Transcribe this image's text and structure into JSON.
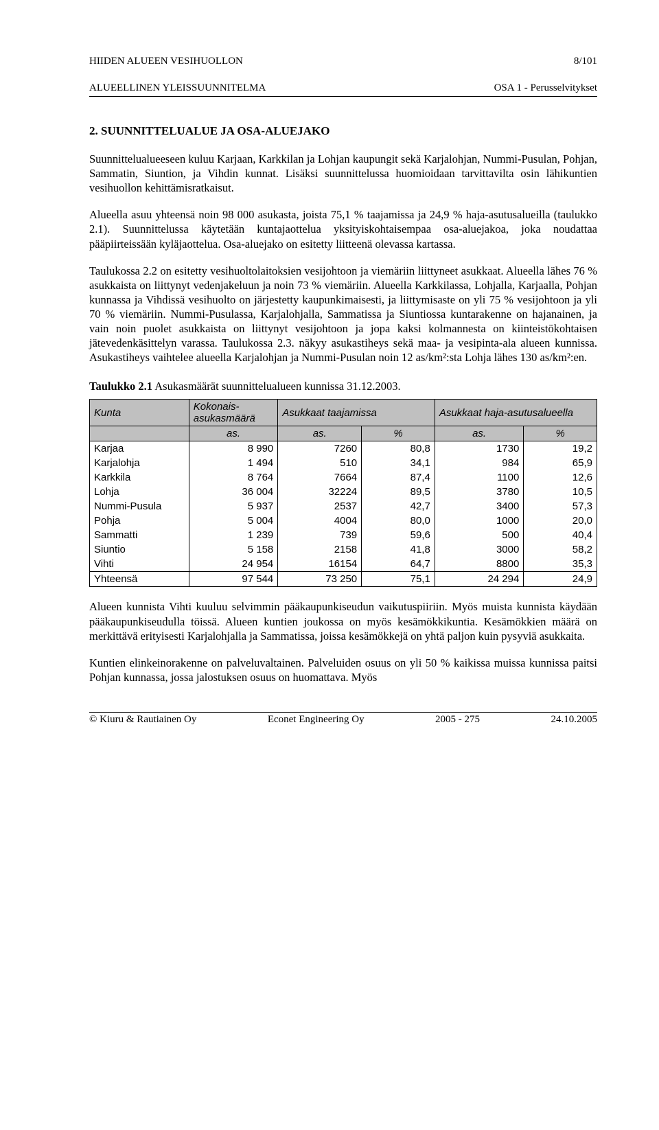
{
  "header": {
    "left_line1": "HIIDEN ALUEEN VESIHUOLLON",
    "left_line2": "ALUEELLINEN YLEISSUUNNITELMA",
    "right_line1": "8/101",
    "right_line2": "OSA 1 - Perusselvitykset"
  },
  "section_title": "2.  SUUNNITTELUALUE JA OSA-ALUEJAKO",
  "paragraphs": {
    "p1": "Suunnittelualueeseen kuluu Karjaan, Karkkilan ja Lohjan kaupungit sekä Karjalohjan, Nummi-Pusulan, Pohjan, Sammatin, Siuntion, ja Vihdin kunnat. Lisäksi suunnittelussa huomioidaan tarvittavilta osin lähikuntien vesihuollon kehittämisratkaisut.",
    "p2": "Alueella asuu yhteensä noin 98 000 asukasta, joista 75,1 % taajamissa ja 24,9 % haja-asutusalueilla (taulukko 2.1). Suunnittelussa käytetään kuntajaottelua yksityiskohtaisempaa osa-aluejakoa, joka noudattaa pääpiirteissään kyläjaottelua. Osa-aluejako on esitetty liitteenä olevassa kartassa.",
    "p3": "Taulukossa 2.2 on esitetty vesihuoltolaitoksien vesijohtoon ja viemäriin liittyneet asukkaat. Alueella lähes 76 % asukkaista on liittynyt vedenjakeluun ja noin 73 % viemäriin. Alueella Karkkilassa, Lohjalla, Karjaalla, Pohjan kunnassa ja Vihdissä vesihuolto on järjestetty kaupunkimaisesti, ja liittymisaste on yli 75 % vesijohtoon ja yli 70 % viemäriin. Nummi-Pusulassa, Karjalohjalla, Sammatissa ja Siuntiossa kuntarakenne on hajanainen, ja vain noin puolet asukkaista on liittynyt vesijohtoon ja jopa kaksi kolmannesta on kiinteistökohtaisen jätevedenkäsittelyn varassa. Taulukossa 2.3. näkyy asukastiheys sekä maa- ja vesipinta-ala alueen kunnissa. Asukastiheys vaihtelee alueella Karjalohjan ja Nummi-Pusulan noin 12 as/km²:sta Lohja lähes 130 as/km²:en.",
    "p4": "Alueen kunnista Vihti kuuluu selvimmin pääkaupunkiseudun vaikutuspiiriin. Myös muista kunnista käydään pääkaupunkiseudulla töissä. Alueen kuntien joukossa on myös kesämökkikuntia. Kesämökkien määrä on merkittävä erityisesti Karjalohjalla ja Sammatissa, joissa kesämökkejä on yhtä paljon kuin pysyviä asukkaita.",
    "p5": "Kuntien elinkeinorakenne on palveluvaltainen. Palveluiden osuus on yli 50 % kaikissa muissa kunnissa paitsi Pohjan kunnassa, jossa jalostuksen osuus on huomattava. Myös"
  },
  "table": {
    "caption_bold": "Taulukko 2.1",
    "caption_rest": " Asukasmäärät suunnittelualueen kunnissa 31.12.2003.",
    "head": {
      "c1": "Kunta",
      "c2": "Kokonais-asukasmäärä",
      "c3": "Asukkaat taajamissa",
      "c4": "Asukkaat haja-asutusalueella",
      "s1": "as.",
      "s2": "as.",
      "s3": "%",
      "s4": "as.",
      "s5": "%"
    },
    "rows": [
      {
        "kunta": "Karjaa",
        "kok": "8 990",
        "taj_as": "7260",
        "taj_pc": "80,8",
        "haja_as": "1730",
        "haja_pc": "19,2"
      },
      {
        "kunta": "Karjalohja",
        "kok": "1 494",
        "taj_as": "510",
        "taj_pc": "34,1",
        "haja_as": "984",
        "haja_pc": "65,9"
      },
      {
        "kunta": "Karkkila",
        "kok": "8 764",
        "taj_as": "7664",
        "taj_pc": "87,4",
        "haja_as": "1100",
        "haja_pc": "12,6"
      },
      {
        "kunta": "Lohja",
        "kok": "36 004",
        "taj_as": "32224",
        "taj_pc": "89,5",
        "haja_as": "3780",
        "haja_pc": "10,5"
      },
      {
        "kunta": "Nummi-Pusula",
        "kok": "5 937",
        "taj_as": "2537",
        "taj_pc": "42,7",
        "haja_as": "3400",
        "haja_pc": "57,3"
      },
      {
        "kunta": "Pohja",
        "kok": "5 004",
        "taj_as": "4004",
        "taj_pc": "80,0",
        "haja_as": "1000",
        "haja_pc": "20,0"
      },
      {
        "kunta": "Sammatti",
        "kok": "1 239",
        "taj_as": "739",
        "taj_pc": "59,6",
        "haja_as": "500",
        "haja_pc": "40,4"
      },
      {
        "kunta": "Siuntio",
        "kok": "5 158",
        "taj_as": "2158",
        "taj_pc": "41,8",
        "haja_as": "3000",
        "haja_pc": "58,2"
      },
      {
        "kunta": "Vihti",
        "kok": "24 954",
        "taj_as": "16154",
        "taj_pc": "64,7",
        "haja_as": "8800",
        "haja_pc": "35,3"
      }
    ],
    "total": {
      "kunta": "Yhteensä",
      "kok": "97 544",
      "taj_as": "73 250",
      "taj_pc": "75,1",
      "haja_as": "24 294",
      "haja_pc": "24,9"
    }
  },
  "footer": {
    "left": "© Kiuru & Rautiainen Oy",
    "mid": "Econet Engineering Oy",
    "code": "2005 - 275",
    "date": "24.10.2005"
  }
}
